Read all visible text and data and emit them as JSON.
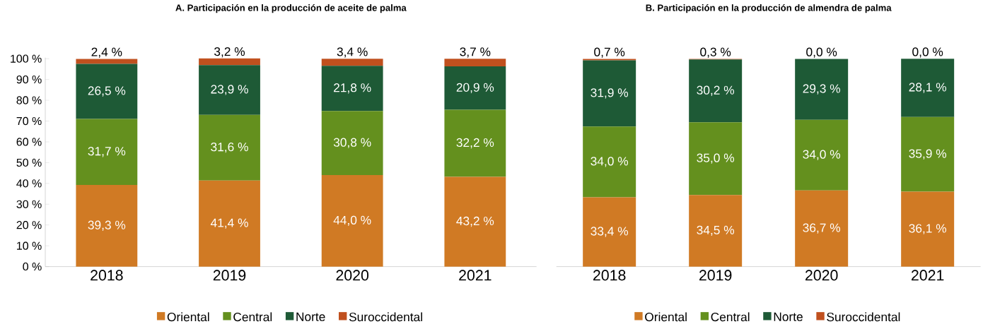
{
  "chart_data": [
    {
      "type": "bar",
      "stacked": true,
      "title": "A. Participación en la producción de aceite de palma",
      "categories": [
        "2018",
        "2019",
        "2020",
        "2021"
      ],
      "ylim": [
        0,
        100
      ],
      "yticks": [
        {
          "value": 0,
          "label": "0 %"
        },
        {
          "value": 10,
          "label": "10 %"
        },
        {
          "value": 20,
          "label": "20 %"
        },
        {
          "value": 30,
          "label": "30 %"
        },
        {
          "value": 40,
          "label": "40 %"
        },
        {
          "value": 50,
          "label": "50 %"
        },
        {
          "value": 60,
          "label": "60 %"
        },
        {
          "value": 70,
          "label": "70 %"
        },
        {
          "value": 80,
          "label": "80 %"
        },
        {
          "value": 90,
          "label": "90 %"
        },
        {
          "value": 100,
          "label": "100 %"
        }
      ],
      "legend": "bottom",
      "series": [
        {
          "name": "Oriental",
          "color": "#d07a24",
          "values": [
            39.3,
            41.4,
            44.0,
            43.2
          ],
          "value_labels": [
            "39,3 %",
            "41,4 %",
            "44,0 %",
            "43,2 %"
          ]
        },
        {
          "name": "Central",
          "color": "#64901e",
          "values": [
            31.7,
            31.6,
            30.8,
            32.2
          ],
          "value_labels": [
            "31,7 %",
            "31,6 %",
            "30,8 %",
            "32,2 %"
          ]
        },
        {
          "name": "Norte",
          "color": "#1e5a36",
          "values": [
            26.5,
            23.9,
            21.8,
            20.9
          ],
          "value_labels": [
            "26,5 %",
            "23,9 %",
            "21,8 %",
            "20,9 %"
          ]
        },
        {
          "name": "Suroccidental",
          "color": "#c0501e",
          "values": [
            2.4,
            3.2,
            3.4,
            3.7
          ],
          "value_labels": [
            "2,4 %",
            "3,2 %",
            "3,4 %",
            "3,7 %"
          ]
        }
      ]
    },
    {
      "type": "bar",
      "stacked": true,
      "title": "B. Participación en la producción de almendra de palma",
      "categories": [
        "2018",
        "2019",
        "2020",
        "2021"
      ],
      "tick_labels": "x",
      "legend": "bottom",
      "series": [
        {
          "name": "Oriental",
          "color": "#d07a24",
          "values": [
            33.4,
            34.5,
            36.7,
            36.1
          ],
          "value_labels": [
            "33,4 %",
            "34,5 %",
            "36,7 %",
            "36,1 %"
          ]
        },
        {
          "name": "Central",
          "color": "#64901e",
          "values": [
            34.0,
            35.0,
            34.0,
            35.9
          ],
          "value_labels": [
            "34,0 %",
            "35,0 %",
            "34,0 %",
            "35,9 %"
          ]
        },
        {
          "name": "Norte",
          "color": "#1e5a36",
          "values": [
            31.9,
            30.2,
            29.3,
            28.1
          ],
          "value_labels": [
            "31,9 %",
            "30,2 %",
            "29,3 %",
            "28,1 %"
          ]
        },
        {
          "name": "Suroccidental",
          "color": "#c0501e",
          "values": [
            0.7,
            0.3,
            0.0,
            0.0
          ],
          "value_labels": [
            "0,7 %",
            "0,3 %",
            "0,0 %",
            "0,0 %"
          ]
        }
      ]
    }
  ]
}
